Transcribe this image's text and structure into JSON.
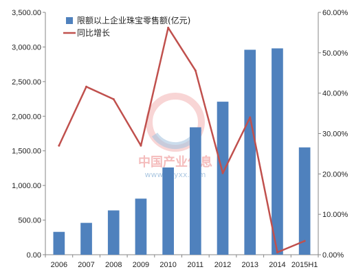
{
  "chart_data": {
    "type": "bar",
    "categories": [
      "2006",
      "2007",
      "2008",
      "2009",
      "2010",
      "2011",
      "2012",
      "2013",
      "2014",
      "2015H1"
    ],
    "series": [
      {
        "name": "限额以上企业珠宝零售额(亿元)",
        "type": "bar",
        "axis": "left",
        "color": "#4f81bd",
        "values": [
          330,
          460,
          640,
          810,
          1260,
          1840,
          2210,
          2960,
          2980,
          1550
        ]
      },
      {
        "name": "同比增长",
        "type": "line",
        "axis": "right",
        "color": "#c0504d",
        "values": [
          0.27,
          0.416,
          0.385,
          0.27,
          0.562,
          0.456,
          0.202,
          0.34,
          0.006,
          0.034
        ]
      }
    ],
    "y_left": {
      "min": 0,
      "max": 3500,
      "step": 500,
      "tick_labels": [
        "0.00",
        "500.00",
        "1,000.00",
        "1,500.00",
        "2,000.00",
        "2,500.00",
        "3,000.00",
        "3,500.00"
      ]
    },
    "y_right": {
      "min": 0,
      "max": 0.6,
      "step": 0.1,
      "tick_labels": [
        "0.00%",
        "10.00%",
        "20.00%",
        "30.00%",
        "40.00%",
        "50.00%",
        "60.00%"
      ]
    },
    "legend_position": "top-left",
    "grid": false
  },
  "watermark": {
    "title": "中国产业信息",
    "url": "www.chyxx.com"
  }
}
